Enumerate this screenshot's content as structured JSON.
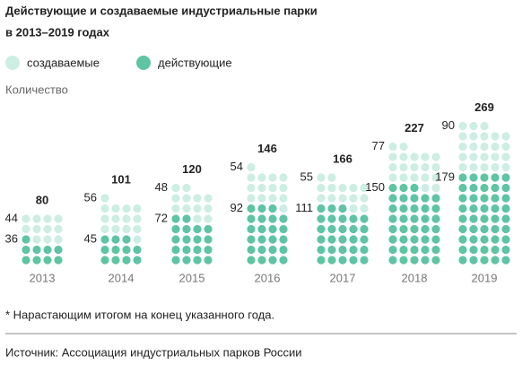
{
  "chart_data": {
    "type": "dot",
    "title": [
      "Действующие и создаваемые индустриальные парки",
      "в 2013–2019 годах"
    ],
    "y_label": "Количество",
    "categories": [
      "2013",
      "2014",
      "2015",
      "2016",
      "2017",
      "2018",
      "2019"
    ],
    "series": [
      {
        "name": "действующие",
        "color": "#5fc4a1",
        "values": [
          36,
          45,
          72,
          92,
          111,
          150,
          179
        ]
      },
      {
        "name": "создаваемые",
        "color": "#cdeee2",
        "values": [
          44,
          56,
          48,
          54,
          55,
          77,
          90
        ]
      }
    ],
    "totals": [
      80,
      101,
      120,
      146,
      166,
      227,
      269
    ],
    "footnote": "* Нарастающим итогом на конец указанного года.",
    "source": "Источник: Ассоциация индустриальных парков России"
  }
}
